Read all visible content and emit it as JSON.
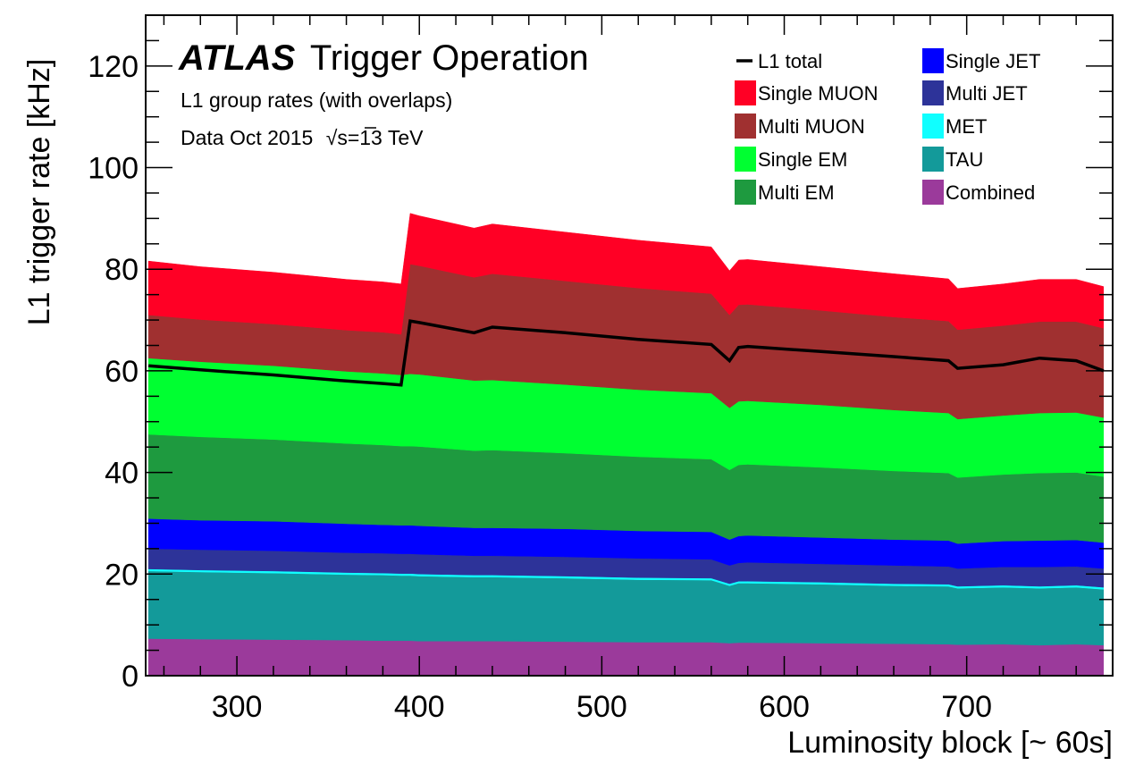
{
  "chart_data": {
    "type": "area",
    "stacked": true,
    "title": "",
    "annotations": {
      "brand": "ATLAS",
      "brand_suffix": "Trigger Operation",
      "line1": "L1 group rates (with overlaps)",
      "line2_prefix": "Data Oct 2015",
      "line2_sqrt": "s",
      "line2_suffix": "=13 TeV"
    },
    "xlabel": "Luminosity block [~ 60s]",
    "ylabel": "L1 trigger rate [kHz]",
    "xlim": [
      250,
      780
    ],
    "ylim": [
      0,
      130
    ],
    "xticks": [
      300,
      400,
      500,
      600,
      700
    ],
    "yticks": [
      0,
      20,
      40,
      60,
      80,
      100,
      120
    ],
    "grid": false,
    "legend_position": "top-right",
    "x": [
      250,
      280,
      320,
      360,
      380,
      390,
      395,
      400,
      430,
      440,
      480,
      520,
      560,
      570,
      575,
      580,
      620,
      660,
      690,
      695,
      720,
      740,
      760,
      775
    ],
    "series": [
      {
        "name": "Combined",
        "color": "#9b3a9b",
        "values": [
          7.3,
          7.2,
          7.1,
          7.0,
          6.9,
          6.9,
          6.9,
          6.8,
          6.8,
          6.8,
          6.7,
          6.6,
          6.6,
          6.4,
          6.5,
          6.5,
          6.4,
          6.3,
          6.2,
          6.1,
          6.2,
          6.0,
          6.2,
          6.0
        ]
      },
      {
        "name": "TAU",
        "color": "#139a9a",
        "values": [
          13.3,
          13.2,
          13.1,
          12.9,
          12.9,
          12.8,
          12.8,
          12.8,
          12.6,
          12.6,
          12.5,
          12.3,
          12.2,
          11.3,
          11.7,
          11.7,
          11.6,
          11.4,
          11.4,
          11.1,
          11.2,
          11.2,
          11.2,
          11.0
        ]
      },
      {
        "name": "MET",
        "color": "#10ffff",
        "values": [
          0.4,
          0.4,
          0.4,
          0.4,
          0.4,
          0.4,
          0.4,
          0.4,
          0.4,
          0.4,
          0.4,
          0.4,
          0.4,
          0.4,
          0.4,
          0.4,
          0.4,
          0.4,
          0.4,
          0.4,
          0.4,
          0.4,
          0.4,
          0.4
        ]
      },
      {
        "name": "Multi JET",
        "color": "#2d3399",
        "values": [
          4.0,
          4.0,
          4.0,
          3.9,
          3.9,
          3.9,
          3.9,
          3.9,
          3.8,
          3.8,
          3.8,
          3.8,
          3.7,
          3.6,
          3.6,
          3.7,
          3.6,
          3.6,
          3.5,
          3.5,
          3.6,
          3.8,
          3.7,
          3.7
        ]
      },
      {
        "name": "Single JET",
        "color": "#0000ff",
        "values": [
          5.9,
          5.8,
          5.8,
          5.7,
          5.6,
          5.6,
          5.6,
          5.6,
          5.5,
          5.5,
          5.5,
          5.4,
          5.4,
          5.1,
          5.3,
          5.3,
          5.2,
          5.1,
          5.1,
          4.9,
          5.1,
          5.2,
          5.2,
          5.1
        ]
      },
      {
        "name": "Multi EM",
        "color": "#1e9a3f",
        "values": [
          16.6,
          16.4,
          16.1,
          15.8,
          15.7,
          15.6,
          15.6,
          15.6,
          15.2,
          15.3,
          14.9,
          14.6,
          14.3,
          13.7,
          14.0,
          14.0,
          13.8,
          13.5,
          13.3,
          13.0,
          13.1,
          13.3,
          13.3,
          13.0
        ]
      },
      {
        "name": "Single EM",
        "color": "#00ff31",
        "values": [
          15.0,
          14.8,
          14.5,
          14.2,
          14.1,
          14.0,
          14.2,
          14.2,
          13.8,
          13.8,
          13.5,
          13.2,
          13.0,
          12.2,
          12.5,
          12.5,
          12.3,
          12.0,
          11.8,
          11.5,
          11.6,
          11.8,
          11.8,
          11.6
        ]
      },
      {
        "name": "Multi MUON",
        "color": "#a03030",
        "values": [
          8.5,
          8.3,
          8.2,
          8.1,
          8.1,
          8.0,
          21.6,
          21.4,
          20.3,
          20.9,
          20.4,
          20.0,
          19.6,
          18.3,
          19.0,
          19.0,
          18.6,
          18.3,
          18.1,
          17.6,
          17.7,
          18.0,
          17.9,
          17.6
        ]
      },
      {
        "name": "Single MUON",
        "color": "#ff0025",
        "values": [
          10.6,
          10.4,
          10.2,
          10.0,
          9.9,
          9.9,
          10.0,
          9.8,
          9.7,
          9.8,
          9.6,
          9.4,
          9.2,
          8.7,
          8.8,
          8.8,
          8.6,
          8.5,
          8.3,
          8.1,
          8.2,
          8.3,
          8.3,
          8.2
        ]
      }
    ],
    "total": {
      "name": "L1 total",
      "color": "#000000",
      "values": [
        61.0,
        60.2,
        59.2,
        58.0,
        57.5,
        57.2,
        69.8,
        69.5,
        67.5,
        68.6,
        67.5,
        66.2,
        65.2,
        62.0,
        64.6,
        64.8,
        63.8,
        62.8,
        62.0,
        60.5,
        61.2,
        62.5,
        62.0,
        60.0
      ]
    },
    "legend_order": [
      "L1 total",
      "Single MUON",
      "Multi MUON",
      "Single EM",
      "Multi EM",
      "Single JET",
      "Multi JET",
      "MET",
      "TAU",
      "Combined"
    ]
  }
}
